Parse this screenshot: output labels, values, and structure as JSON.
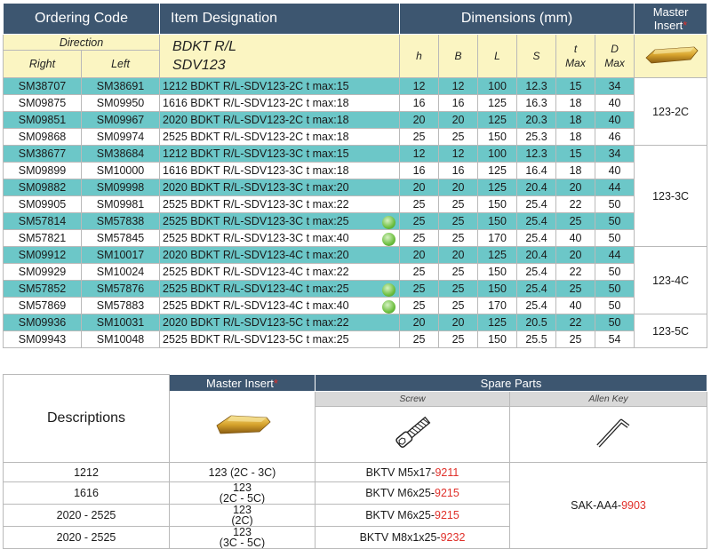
{
  "header": {
    "ordering_code": "Ordering Code",
    "item_designation": "Item Designation",
    "dimensions": "Dimensions (mm)",
    "master_insert_1": "Master",
    "master_insert_2": "Insert",
    "asterisk": "*"
  },
  "subheader": {
    "direction": "Direction",
    "right": "Right",
    "left": "Left",
    "designation_1": "BDKT R/L",
    "designation_2": "SDV123",
    "h": "h",
    "B": "B",
    "L": "L",
    "S": "S",
    "t": "t",
    "t_max": "Max",
    "D": "D",
    "D_max": "Max"
  },
  "rows": [
    {
      "right": "SM38707",
      "left": "SM38691",
      "desig": "1212 BDKT R/L-SDV123-2C t max:15",
      "h": "12",
      "B": "12",
      "L": "100",
      "S": "12.3",
      "t": "15",
      "D": "34",
      "eco": false,
      "teal": true
    },
    {
      "right": "SM09875",
      "left": "SM09950",
      "desig": "1616 BDKT R/L-SDV123-2C t max:18",
      "h": "16",
      "B": "16",
      "L": "125",
      "S": "16.3",
      "t": "18",
      "D": "40",
      "eco": false,
      "teal": false
    },
    {
      "right": "SM09851",
      "left": "SM09967",
      "desig": "2020 BDKT R/L-SDV123-2C t max:18",
      "h": "20",
      "B": "20",
      "L": "125",
      "S": "20.3",
      "t": "18",
      "D": "40",
      "eco": false,
      "teal": true
    },
    {
      "right": "SM09868",
      "left": "SM09974",
      "desig": "2525 BDKT R/L-SDV123-2C t max:18",
      "h": "25",
      "B": "25",
      "L": "150",
      "S": "25.3",
      "t": "18",
      "D": "46",
      "eco": false,
      "teal": false
    },
    {
      "right": "SM38677",
      "left": "SM38684",
      "desig": "1212 BDKT R/L-SDV123-3C t max:15",
      "h": "12",
      "B": "12",
      "L": "100",
      "S": "12.3",
      "t": "15",
      "D": "34",
      "eco": false,
      "teal": true
    },
    {
      "right": "SM09899",
      "left": "SM10000",
      "desig": "1616 BDKT R/L-SDV123-3C t max:18",
      "h": "16",
      "B": "16",
      "L": "125",
      "S": "16.4",
      "t": "18",
      "D": "40",
      "eco": false,
      "teal": false
    },
    {
      "right": "SM09882",
      "left": "SM09998",
      "desig": "2020 BDKT R/L-SDV123-3C t max:20",
      "h": "20",
      "B": "20",
      "L": "125",
      "S": "20.4",
      "t": "20",
      "D": "44",
      "eco": false,
      "teal": true
    },
    {
      "right": "SM09905",
      "left": "SM09981",
      "desig": "2525 BDKT R/L-SDV123-3C t max:22",
      "h": "25",
      "B": "25",
      "L": "150",
      "S": "25.4",
      "t": "22",
      "D": "50",
      "eco": false,
      "teal": false
    },
    {
      "right": "SM57814",
      "left": "SM57838",
      "desig": "2525 BDKT R/L-SDV123-3C t max:25",
      "h": "25",
      "B": "25",
      "L": "150",
      "S": "25.4",
      "t": "25",
      "D": "50",
      "eco": true,
      "teal": true
    },
    {
      "right": "SM57821",
      "left": "SM57845",
      "desig": "2525 BDKT R/L-SDV123-3C t max:40",
      "h": "25",
      "B": "25",
      "L": "170",
      "S": "25.4",
      "t": "40",
      "D": "50",
      "eco": true,
      "teal": false
    },
    {
      "right": "SM09912",
      "left": "SM10017",
      "desig": "2020 BDKT R/L-SDV123-4C t max:20",
      "h": "20",
      "B": "20",
      "L": "125",
      "S": "20.4",
      "t": "20",
      "D": "44",
      "eco": false,
      "teal": true
    },
    {
      "right": "SM09929",
      "left": "SM10024",
      "desig": "2525 BDKT R/L-SDV123-4C t max:22",
      "h": "25",
      "B": "25",
      "L": "150",
      "S": "25.4",
      "t": "22",
      "D": "50",
      "eco": false,
      "teal": false
    },
    {
      "right": "SM57852",
      "left": "SM57876",
      "desig": "2525 BDKT R/L-SDV123-4C t max:25",
      "h": "25",
      "B": "25",
      "L": "150",
      "S": "25.4",
      "t": "25",
      "D": "50",
      "eco": true,
      "teal": true
    },
    {
      "right": "SM57869",
      "left": "SM57883",
      "desig": "2525 BDKT R/L-SDV123-4C t max:40",
      "h": "25",
      "B": "25",
      "L": "170",
      "S": "25.4",
      "t": "40",
      "D": "50",
      "eco": true,
      "teal": false
    },
    {
      "right": "SM09936",
      "left": "SM10031",
      "desig": "2020 BDKT R/L-SDV123-5C t max:22",
      "h": "20",
      "B": "20",
      "L": "125",
      "S": "20.5",
      "t": "22",
      "D": "50",
      "eco": false,
      "teal": true
    },
    {
      "right": "SM09943",
      "left": "SM10048",
      "desig": "2525 BDKT R/L-SDV123-5C t max:25",
      "h": "25",
      "B": "25",
      "L": "150",
      "S": "25.5",
      "t": "25",
      "D": "54",
      "eco": false,
      "teal": false
    }
  ],
  "master_inserts": [
    {
      "label": "123-2C",
      "rows": 4
    },
    {
      "label": "123-3C",
      "rows": 6
    },
    {
      "label": "123-4C",
      "rows": 4
    },
    {
      "label": "123-5C",
      "rows": 2
    }
  ],
  "lower": {
    "descriptions": "Descriptions",
    "master_insert": "Master Insert",
    "asterisk": "*",
    "spare_parts": "Spare Parts",
    "screw": "Screw",
    "allen_key": "Allen Key",
    "key_code": "SAK-AA4-",
    "key_code_red": "9903",
    "rows": [
      {
        "desc": "1212",
        "insert_1": "123 (2C - 3C)",
        "insert_2": "",
        "screw": "BKTV M5x17-",
        "screw_red": "9211"
      },
      {
        "desc": "1616",
        "insert_1": "123",
        "insert_2": "(2C - 5C)",
        "screw": "BKTV M6x25-",
        "screw_red": "9215"
      },
      {
        "desc": "2020 - 2525",
        "insert_1": "123",
        "insert_2": "(2C)",
        "screw": "BKTV M6x25-",
        "screw_red": "9215"
      },
      {
        "desc": "2020 - 2525",
        "insert_1": "123",
        "insert_2": "(3C - 5C)",
        "screw": "BKTV M8x1x25-",
        "screw_red": "9232"
      }
    ]
  }
}
